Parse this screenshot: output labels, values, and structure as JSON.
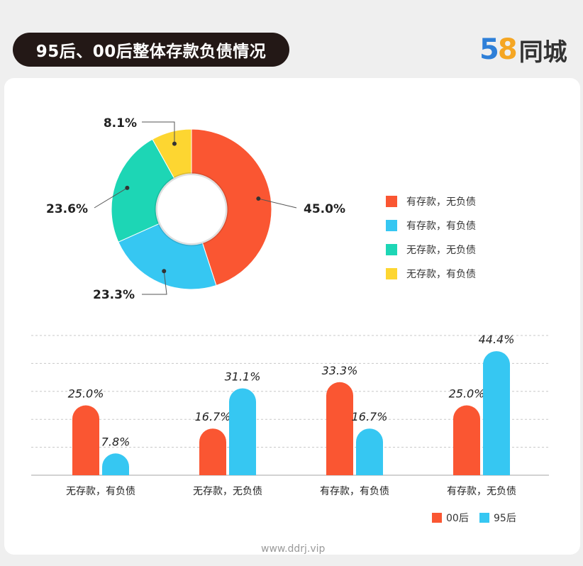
{
  "header": {
    "title": "95后、00后整体存款负债情况",
    "logo_digit_5": "5",
    "logo_digit_8": "8",
    "logo_text": "同城"
  },
  "watermark": "www.ddrj.vip",
  "chart_data": [
    {
      "type": "pie",
      "donut": true,
      "labels": [
        "有存款，无负债",
        "有存款，有负债",
        "无存款，无负债",
        "无存款，有负债"
      ],
      "values": [
        45.0,
        23.3,
        23.6,
        8.1
      ],
      "value_labels": [
        "45.0%",
        "23.3%",
        "23.6%",
        "8.1%"
      ],
      "colors": [
        "#fa5632",
        "#36c7f2",
        "#1dd6b5",
        "#fdd631"
      ],
      "legend": "right"
    },
    {
      "type": "bar",
      "categories": [
        "无存款，有负债",
        "无存款，无负债",
        "有存款，有负债",
        "有存款，无负债"
      ],
      "series": [
        {
          "name": "00后",
          "values": [
            25.0,
            16.7,
            33.3,
            25.0
          ],
          "labels": [
            "25.0%",
            "16.7%",
            "33.3%",
            "25.0%"
          ],
          "color": "#fa5632"
        },
        {
          "name": "95后",
          "values": [
            7.8,
            31.1,
            16.7,
            44.4
          ],
          "labels": [
            "7.8%",
            "31.1%",
            "16.7%",
            "44.4%"
          ],
          "color": "#36c7f2"
        }
      ],
      "ylim": [
        0,
        50
      ],
      "grid": true,
      "legend": "bottom-right"
    }
  ]
}
